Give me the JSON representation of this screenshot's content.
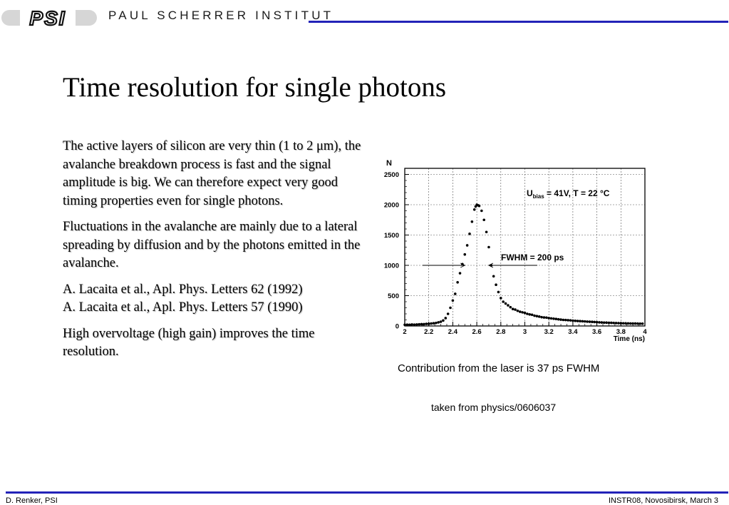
{
  "header": {
    "logo_text": "PSI",
    "institute": "PAUL SCHERRER INSTITUT",
    "accent_color": "#2323b8"
  },
  "title": "Time resolution for single photons",
  "body": {
    "paragraph1": "The active layers of silicon are very thin (1 to 2 μm), the avalanche breakdown process is fast and the signal amplitude is big. We can therefore expect very good timing properties even for single photons.",
    "paragraph2": "Fluctuations in the avalanche are mainly due to a lateral spreading by diffusion and by the photons emitted in the avalanche.",
    "reference1": "A. Lacaita et al., Apl. Phys. Letters 62 (1992)",
    "reference2": "A. Lacaita et al., Apl. Phys. Letters 57 (1990)",
    "paragraph3": "High overvoltage (high gain) improves the time resolution."
  },
  "chart_data": {
    "type": "scatter",
    "ylabel": "N",
    "xlabel": "Time (ns)",
    "xlim": [
      2,
      4
    ],
    "ylim": [
      0,
      2600
    ],
    "x_ticks": [
      "2",
      "2.2",
      "2.4",
      "2.6",
      "2.8",
      "3",
      "3.2",
      "3.4",
      "3.6",
      "3.8",
      "4"
    ],
    "y_ticks": [
      "0",
      "500",
      "1000",
      "1500",
      "2000",
      "2500"
    ],
    "grid": true,
    "annotations": {
      "conditions_prefix": "U",
      "conditions_sub": "bias",
      "conditions_suffix": " = 41V, T = 22 °C",
      "fwhm": "FWHM = 200 ps"
    },
    "fwhm_arrow_y": 1000,
    "fwhm_left_x": 2.5,
    "fwhm_right_x": 2.7,
    "x": [
      2.0,
      2.02,
      2.04,
      2.06,
      2.08,
      2.1,
      2.12,
      2.14,
      2.16,
      2.18,
      2.2,
      2.22,
      2.24,
      2.26,
      2.28,
      2.3,
      2.32,
      2.34,
      2.36,
      2.38,
      2.4,
      2.42,
      2.44,
      2.46,
      2.48,
      2.5,
      2.52,
      2.54,
      2.56,
      2.58,
      2.59,
      2.6,
      2.61,
      2.62,
      2.64,
      2.66,
      2.68,
      2.7,
      2.72,
      2.74,
      2.76,
      2.78,
      2.8,
      2.82,
      2.84,
      2.86,
      2.88,
      2.9,
      2.92,
      2.94,
      2.96,
      2.98,
      3.0,
      3.02,
      3.04,
      3.06,
      3.08,
      3.1,
      3.12,
      3.14,
      3.16,
      3.18,
      3.2,
      3.22,
      3.24,
      3.26,
      3.28,
      3.3,
      3.32,
      3.34,
      3.36,
      3.38,
      3.4,
      3.42,
      3.44,
      3.46,
      3.48,
      3.5,
      3.52,
      3.54,
      3.56,
      3.58,
      3.6,
      3.62,
      3.64,
      3.66,
      3.68,
      3.7,
      3.72,
      3.74,
      3.76,
      3.78,
      3.8,
      3.82,
      3.84,
      3.86,
      3.88,
      3.9,
      3.92,
      3.94,
      3.96,
      3.98
    ],
    "values": [
      20,
      22,
      20,
      25,
      22,
      25,
      28,
      30,
      30,
      35,
      35,
      40,
      45,
      50,
      60,
      70,
      90,
      130,
      200,
      300,
      420,
      530,
      720,
      870,
      1020,
      1180,
      1330,
      1520,
      1720,
      1920,
      1970,
      2000,
      1990,
      1980,
      1900,
      1750,
      1550,
      1300,
      1000,
      820,
      680,
      560,
      460,
      400,
      370,
      340,
      310,
      280,
      270,
      250,
      235,
      225,
      215,
      200,
      190,
      185,
      170,
      162,
      155,
      145,
      140,
      138,
      130,
      125,
      120,
      115,
      110,
      105,
      100,
      98,
      95,
      92,
      88,
      85,
      82,
      80,
      78,
      75,
      72,
      70,
      68,
      65,
      63,
      60,
      58,
      56,
      55,
      53,
      52,
      50,
      48,
      46,
      45,
      44,
      43,
      42,
      41,
      40,
      40,
      39,
      38,
      38
    ]
  },
  "captions": {
    "laser": "Contribution from the laser is 37 ps FWHM",
    "source": "taken from physics/0606037"
  },
  "footer": {
    "left": "D. Renker, PSI",
    "right": "INSTR08, Novosibirsk, March 3"
  }
}
